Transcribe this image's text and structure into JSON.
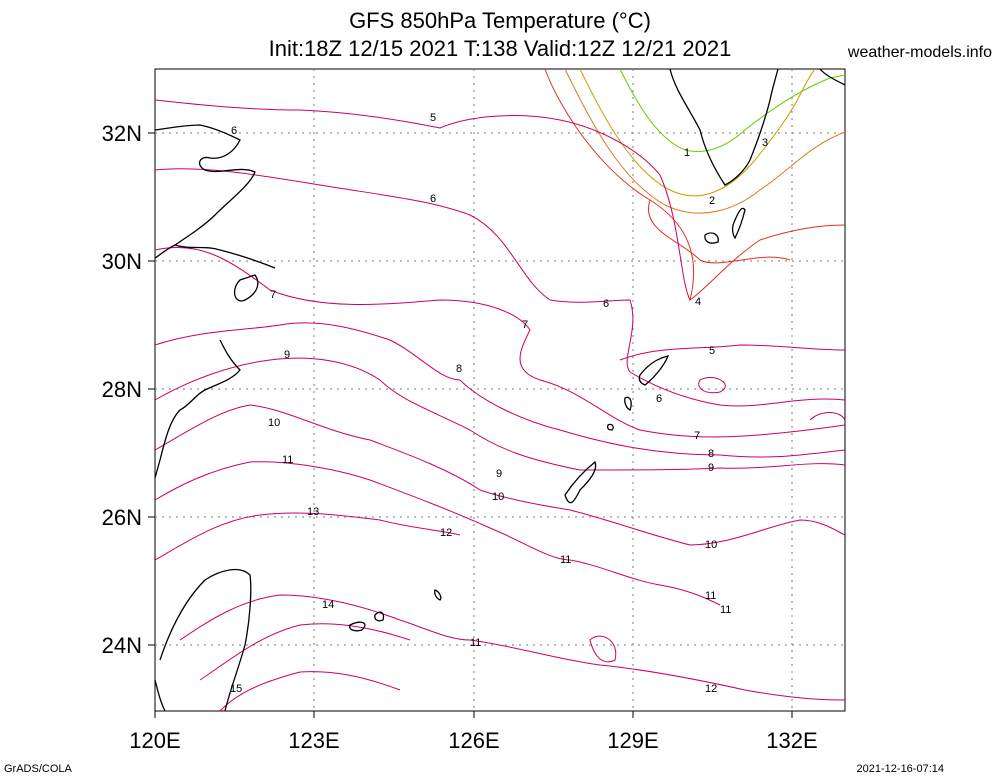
{
  "title": {
    "line1": "GFS 850hPa Temperature (°C)",
    "line2": "Init:18Z 12/15 2021 T:138 Valid:12Z 12/21 2021"
  },
  "site": "weather-models.info",
  "footer": {
    "left": "GrADS/COLA",
    "right": "2021-12-16-07:14"
  },
  "axes": {
    "x_ticks": [
      "120E",
      "123E",
      "126E",
      "129E",
      "132E"
    ],
    "y_ticks": [
      "32N",
      "30N",
      "28N",
      "26N",
      "24N"
    ]
  },
  "contour_labels": [
    "1",
    "2",
    "3",
    "4",
    "5",
    "5",
    "6",
    "6",
    "6",
    "6",
    "7",
    "7",
    "7",
    "8",
    "8",
    "9",
    "9",
    "9",
    "10",
    "10",
    "10",
    "11",
    "11",
    "11",
    "11",
    "11",
    "12",
    "12",
    "13",
    "14",
    "15"
  ],
  "colors": {
    "warm": "#cc0066",
    "mid": "#e0301e",
    "cold": "#e07a1e",
    "coldest": "#66cc00",
    "grid": "#666666"
  }
}
